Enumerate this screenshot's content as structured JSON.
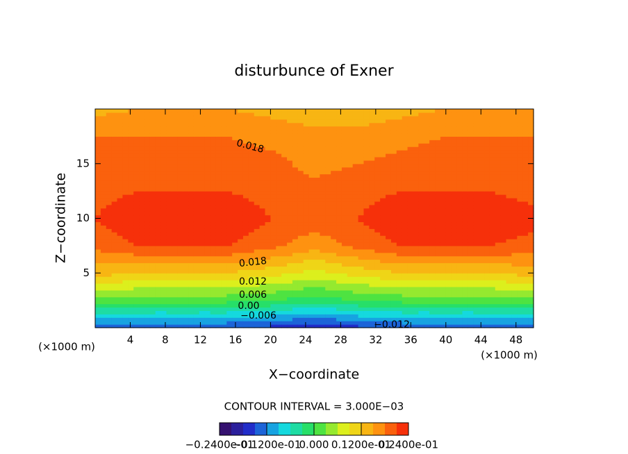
{
  "chart_data": {
    "type": "contour",
    "title": "disturbunce of Exner",
    "xlabel": "X−coordinate",
    "ylabel": "Z−coordinate",
    "x_unit_labels": [
      "(×1000 m)",
      "(×1000 m)"
    ],
    "annotation": "CONTOUR INTERVAL = 3.000E−03",
    "contour_interval": 0.003,
    "contour_labels": [
      "0.018",
      "0.018",
      "0.012",
      "0.006",
      "0.00",
      "−0.006",
      "−0.012"
    ],
    "xlim": [
      0,
      50
    ],
    "ylim": [
      0,
      20
    ],
    "xticks": [
      4,
      8,
      12,
      16,
      20,
      24,
      28,
      32,
      36,
      40,
      44,
      48
    ],
    "yticks": [
      5,
      10,
      15
    ],
    "x": [
      0,
      5,
      10,
      15,
      20,
      25,
      30,
      35,
      40,
      45,
      50
    ],
    "y": [
      0,
      2.5,
      5,
      7.5,
      10,
      12.5,
      15,
      17.5,
      20
    ],
    "z": [
      [
        -0.015,
        -0.015,
        -0.015,
        -0.015,
        -0.016,
        -0.018,
        -0.016,
        -0.015,
        -0.015,
        -0.015,
        -0.015
      ],
      [
        0.002,
        0.001,
        0.001,
        0.001,
        0.0,
        -0.002,
        0.0,
        0.001,
        0.001,
        0.001,
        0.002
      ],
      [
        0.013,
        0.012,
        0.012,
        0.012,
        0.01,
        0.008,
        0.01,
        0.012,
        0.012,
        0.012,
        0.013
      ],
      [
        0.019,
        0.021,
        0.021,
        0.021,
        0.019,
        0.016,
        0.019,
        0.021,
        0.021,
        0.021,
        0.02
      ],
      [
        0.021,
        0.023,
        0.023,
        0.023,
        0.021,
        0.02,
        0.021,
        0.023,
        0.024,
        0.023,
        0.022
      ],
      [
        0.02,
        0.021,
        0.021,
        0.021,
        0.02,
        0.019,
        0.02,
        0.021,
        0.021,
        0.021,
        0.02
      ],
      [
        0.019,
        0.02,
        0.02,
        0.02,
        0.019,
        0.017,
        0.018,
        0.019,
        0.02,
        0.02,
        0.019
      ],
      [
        0.018,
        0.018,
        0.018,
        0.018,
        0.017,
        0.016,
        0.016,
        0.017,
        0.018,
        0.018,
        0.018
      ],
      [
        0.014,
        0.015,
        0.015,
        0.015,
        0.014,
        0.013,
        0.013,
        0.014,
        0.015,
        0.015,
        0.015
      ]
    ],
    "clim": [
      -0.024,
      0.024
    ],
    "colormap": [
      "#3a0a5a",
      "#1f2fd0",
      "#14d8e8",
      "#2be04a",
      "#e8f01a",
      "#ff9a10",
      "#f41808"
    ],
    "colorbar_ticks": [
      {
        "value": -0.024,
        "label": "−0.2400e-01"
      },
      {
        "value": -0.012,
        "label": "−0.1200e-01"
      },
      {
        "value": 0,
        "label": "0.000"
      },
      {
        "value": 0.012,
        "label": "0.1200e-01"
      },
      {
        "value": 0.024,
        "label": "0.2400e-01"
      }
    ]
  }
}
